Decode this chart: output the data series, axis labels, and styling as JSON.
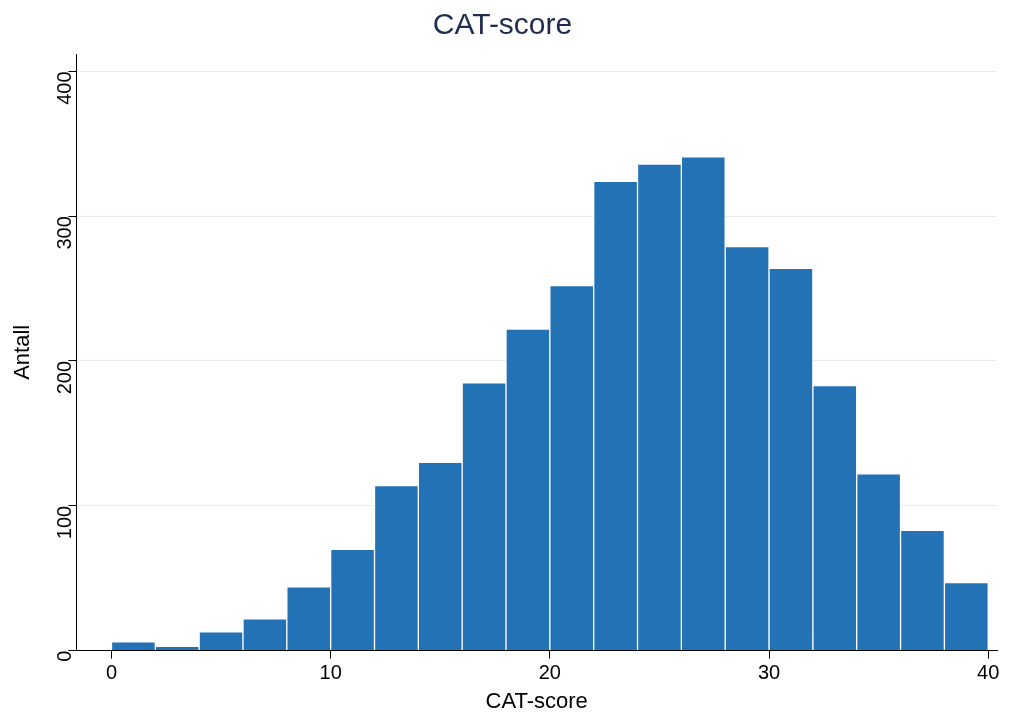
{
  "chart_data": {
    "type": "histogram",
    "title": "CAT-score",
    "xlabel": "CAT-score",
    "ylabel": "Antall",
    "bins": [
      0,
      2,
      4,
      6,
      8,
      10,
      12,
      14,
      16,
      18,
      20,
      22,
      24,
      26,
      28,
      30,
      32,
      34,
      36,
      38,
      40
    ],
    "values": [
      6,
      3,
      13,
      22,
      44,
      70,
      114,
      130,
      185,
      222,
      252,
      324,
      336,
      341,
      279,
      264,
      183,
      122,
      83,
      47
    ],
    "color": "#2372b5",
    "xlim": [
      -1.6,
      40.4
    ],
    "xticks": [
      0,
      10,
      20,
      30,
      40
    ],
    "ylim": [
      0,
      412
    ],
    "yticks": [
      0,
      100,
      200,
      300,
      400
    ],
    "grid": "y",
    "legend": false
  }
}
